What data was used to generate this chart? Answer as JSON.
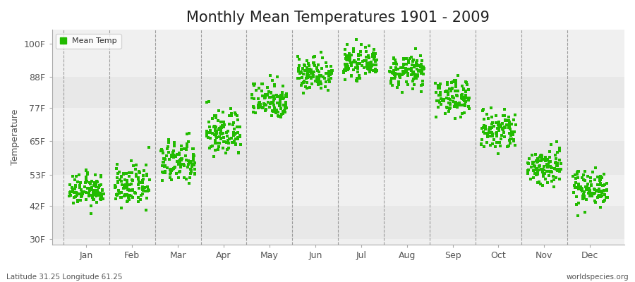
{
  "title": "Monthly Mean Temperatures 1901 - 2009",
  "ylabel": "Temperature",
  "xlabel_labels": [
    "Jan",
    "Feb",
    "Mar",
    "Apr",
    "May",
    "Jun",
    "Jul",
    "Aug",
    "Sep",
    "Oct",
    "Nov",
    "Dec"
  ],
  "ytick_values": [
    30,
    42,
    53,
    65,
    77,
    88,
    100
  ],
  "ytick_labels": [
    "30F",
    "42F",
    "53F",
    "65F",
    "77F",
    "88F",
    "100F"
  ],
  "ylim": [
    28,
    105
  ],
  "xlim": [
    -0.75,
    11.75
  ],
  "dot_color": "#22bb00",
  "dot_size": 5,
  "fig_bg_color": "#ffffff",
  "plot_bg_color": "#f0f0f0",
  "band_colors": [
    "#e8e8e8",
    "#f0f0f0"
  ],
  "grid_color": "#666666",
  "legend_label": "Mean Temp",
  "footnote_left": "Latitude 31.25 Longitude 61.25",
  "footnote_right": "worldspecies.org",
  "title_fontsize": 15,
  "axis_label_fontsize": 9,
  "tick_fontsize": 9,
  "n_years": 109,
  "month_means": [
    47.5,
    49.0,
    57.5,
    68.0,
    80.0,
    89.5,
    93.0,
    90.0,
    81.0,
    68.5,
    56.0,
    48.5
  ],
  "month_stds": [
    2.8,
    3.5,
    4.0,
    4.2,
    3.5,
    3.0,
    2.5,
    2.8,
    3.2,
    3.8,
    3.5,
    3.2
  ]
}
